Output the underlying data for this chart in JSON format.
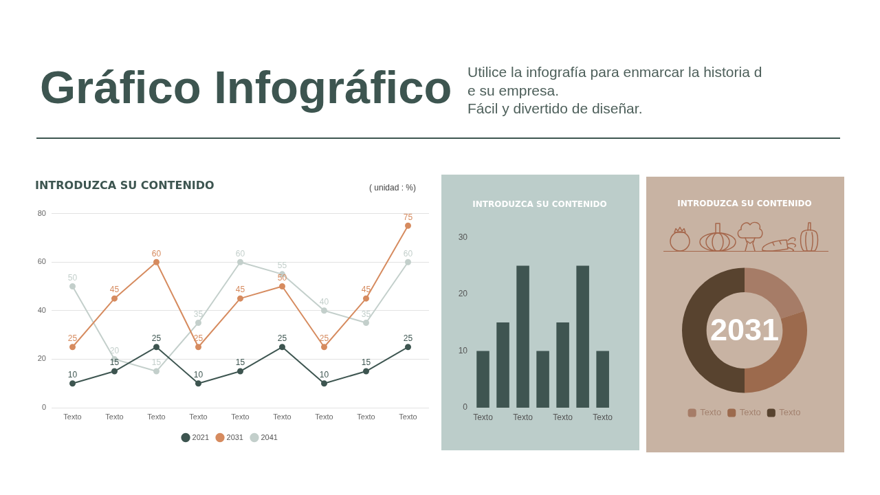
{
  "chart_data": [
    {
      "type": "line",
      "title": "INTRODUZCA SU CONTENIDO",
      "categories": [
        "Texto",
        "Texto",
        "Texto",
        "Texto",
        "Texto",
        "Texto",
        "Texto",
        "Texto",
        "Texto"
      ],
      "series": [
        {
          "name": "2021",
          "color": "#3d5550",
          "values": [
            10,
            15,
            25,
            10,
            15,
            25,
            10,
            15,
            25
          ]
        },
        {
          "name": "2031",
          "color": "#d68b5f",
          "values": [
            25,
            45,
            60,
            25,
            45,
            50,
            25,
            45,
            75
          ]
        },
        {
          "name": "2041",
          "color": "#c3cfcb",
          "values": [
            50,
            20,
            15,
            35,
            60,
            55,
            40,
            35,
            60
          ]
        }
      ],
      "ylim": [
        0,
        80
      ],
      "yticks": [
        0,
        20,
        40,
        60,
        80
      ],
      "grid": "y",
      "legend": "bottom",
      "marker": "circle",
      "line_style": "solid",
      "data_labels": true,
      "annotations": [
        "( unidad : %)",
        "Gráfico Infográfico",
        "Utilice la infografía para enmarcar la historia d\ne su empresa.\nFácil y divertido de diseñar."
      ]
    },
    {
      "type": "bar",
      "title": "INTRODUZCA SU CONTENIDO",
      "categories": [
        "Texto",
        null,
        "Texto",
        null,
        "Texto",
        null,
        "Texto"
      ],
      "values": [
        10,
        15,
        25,
        10,
        15,
        25,
        10
      ],
      "color": "#3f5551",
      "ylim": [
        0,
        30
      ],
      "yticks": [
        0,
        10,
        20,
        30
      ]
    },
    {
      "type": "donut",
      "title": "INTRODUZCA SU CONTENIDO",
      "categories": [
        "Texto",
        "Texto",
        "Texto"
      ],
      "values": [
        20,
        30,
        50
      ],
      "colors": [
        "#a67c67",
        "#9c6a4d",
        "#58432f"
      ],
      "legend": "bottom",
      "annotations": [
        "2031"
      ]
    }
  ]
}
